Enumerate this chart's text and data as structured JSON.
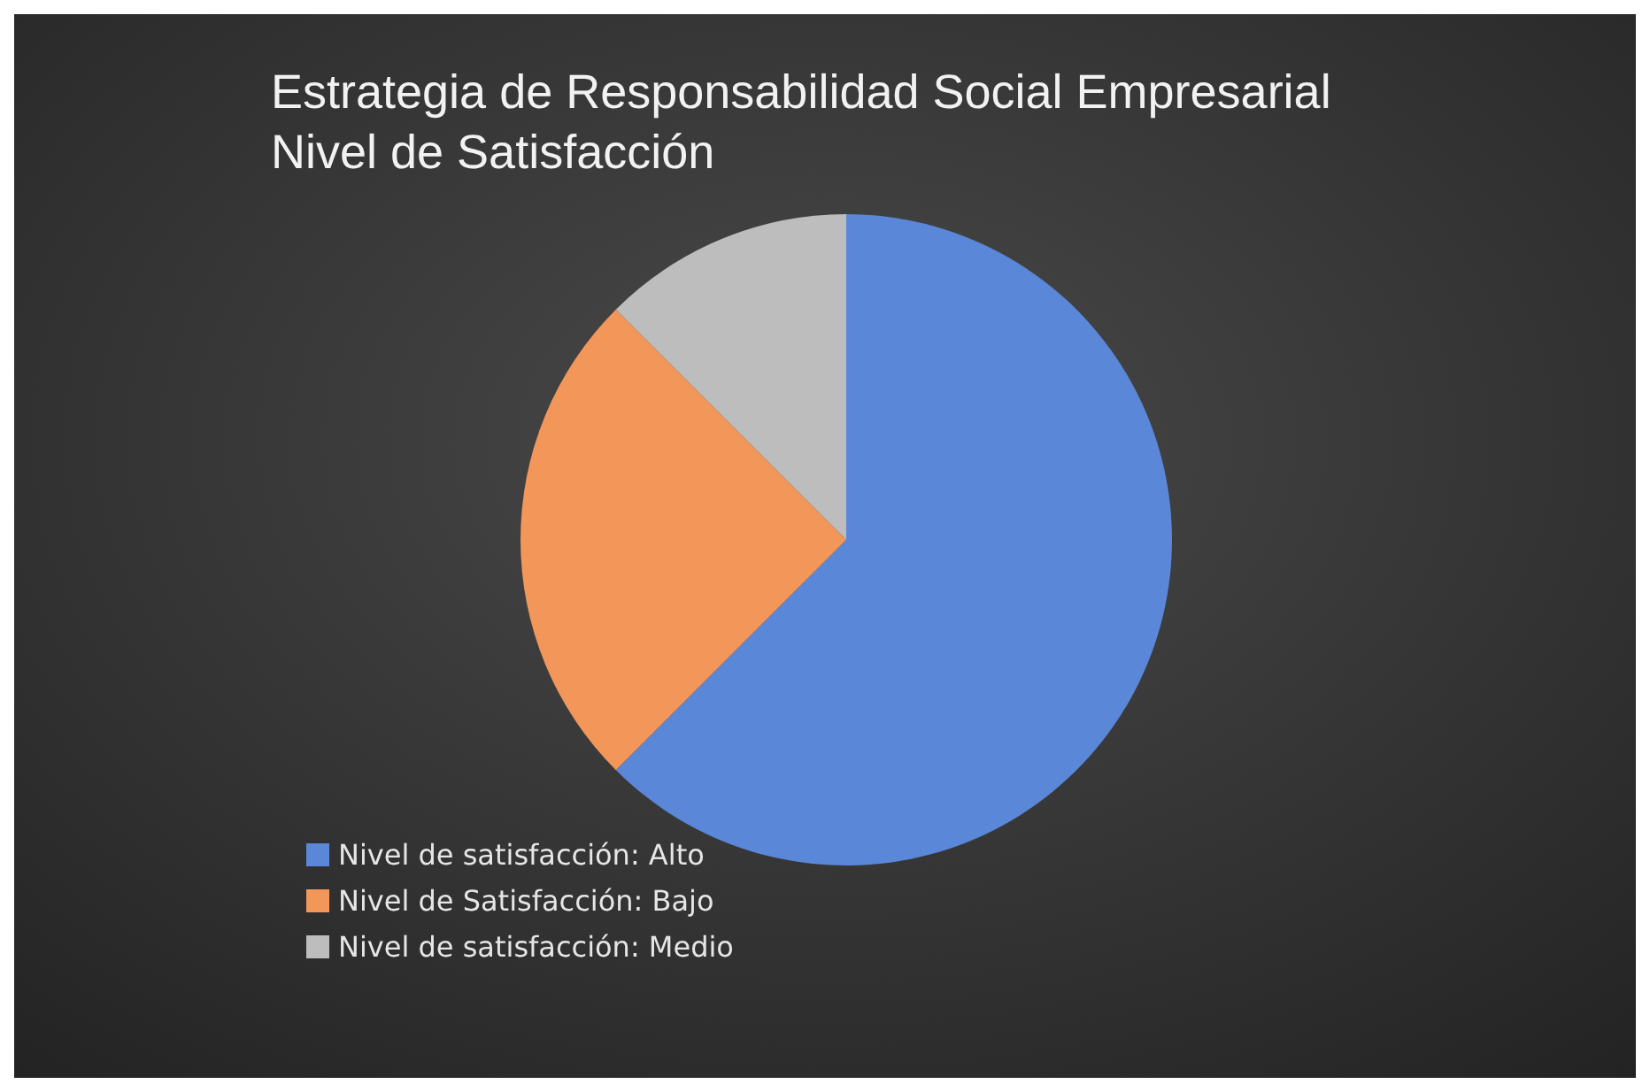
{
  "chart_data": {
    "type": "pie",
    "title": "Estrategia de Responsabilidad Social Empresarial\nNivel de Satisfacción",
    "categories": [
      "Nivel de satisfacción: Alto",
      "Nivel de Satisfacción: Bajo",
      "Nivel de satisfacción: Medio"
    ],
    "values": [
      62.5,
      25,
      12.5
    ],
    "colors": [
      "#5a87d8",
      "#f2965a",
      "#bdbdbd"
    ],
    "legend": "bottom left"
  }
}
